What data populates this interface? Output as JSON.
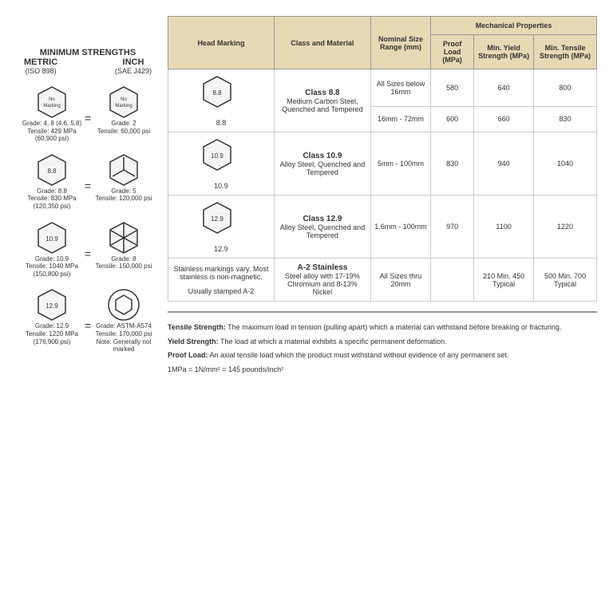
{
  "left": {
    "title": "MINIMUM STRENGTHS",
    "metric_h": "METRIC",
    "metric_s": "(ISO 898)",
    "inch_h": "INCH",
    "inch_s": "(SAE J429)",
    "rows": [
      {
        "m_mark": "No Marking",
        "m_grade": "Grade: 4, 8 (4.6, 5.8)",
        "m_tens": "Tensile: 429 MPa",
        "m_psi": "(60,900 psi)",
        "i_mark": "No Marking",
        "i_grade": "Grade: 2",
        "i_tens": "Tensile: 60,000 psi"
      },
      {
        "m_mark": "8.8",
        "m_grade": "Grade: 8.8",
        "m_tens": "Tensile: 830 MPa",
        "m_psi": "(120,350 psi)",
        "i_mark": "3-line",
        "i_grade": "Grade: 5",
        "i_tens": "Tensile: 120,000 psi"
      },
      {
        "m_mark": "10.9",
        "m_grade": "Grade: 10.9",
        "m_tens": "Tensile: 1040 MPa",
        "m_psi": "(150,800 psi)",
        "i_mark": "6-line",
        "i_grade": "Grade: 8",
        "i_tens": "Tensile: 150,000 psi"
      },
      {
        "m_mark": "12.9",
        "m_grade": "Grade: 12.9",
        "m_tens": "Tensile: 1220 MPa",
        "m_psi": "(176,900 psi)",
        "i_mark": "socket",
        "i_grade": "Grade: ASTM-A574",
        "i_tens": "Tensile: 170,000 psi",
        "i_note": "Note: Generally not marked"
      }
    ]
  },
  "table": {
    "headers": {
      "marking": "Head Marking",
      "class": "Class and Material",
      "size": "Nominal Size Range (mm)",
      "mech": "Mechanical Properties",
      "proof": "Proof Load (MPa)",
      "yield": "Min. Yield Strength (MPa)",
      "tensile": "Min. Tensile Strength (MPa)"
    },
    "rows": [
      {
        "mark": "8.8",
        "marklabel": "8.8",
        "class": "Class 8.8",
        "material": "Medium Carbon Steel, Quenched and Tempered",
        "size1": "All Sizes below 16mm",
        "proof1": "580",
        "yield1": "640",
        "tens1": "800",
        "size2": "16mm - 72mm",
        "proof2": "600",
        "yield2": "660",
        "tens2": "830",
        "split": true
      },
      {
        "mark": "10.9",
        "marklabel": "10.9",
        "class": "Class 10.9",
        "material": "Alloy Steel, Quenched and Tempered",
        "size1": "5mm - 100mm",
        "proof1": "830",
        "yield1": "940",
        "tens1": "1040"
      },
      {
        "mark": "12.9",
        "marklabel": "12.9",
        "class": "Class 12.9",
        "material": "Alloy Steel, Quenched and Tempered",
        "size1": "1.6mm - 100mm",
        "proof1": "970",
        "yield1": "1100",
        "tens1": "1220"
      },
      {
        "marktext": "Stainless markings vary. Most stainless is non-magnetic.",
        "marksub": "Usually stamped A-2",
        "class": "A-2 Stainless",
        "material": "Steel alloy with 17-19% Chromium and 8-13% Nickel",
        "size1": "All Sizes thru 20mm",
        "proof1": "",
        "yield1": "210 Min. 450 Typical",
        "tens1": "500 Min. 700 Typical",
        "stainless": true
      }
    ]
  },
  "defs": {
    "tensile_l": "Tensile Strength:",
    "tensile_t": " The maximum load in tension (pulling apart) which a material can withstand before breaking or fracturing.",
    "yield_l": "Yield Strength:",
    "yield_t": " The load at which a material exhibits a specific permanent deformation.",
    "proof_l": "Proof Load:",
    "proof_t": " An axial tensile load which the product must withstand without evidence of any permanent set.",
    "units": "1MPa = 1N/mm² = 145 pounds/inch²"
  }
}
